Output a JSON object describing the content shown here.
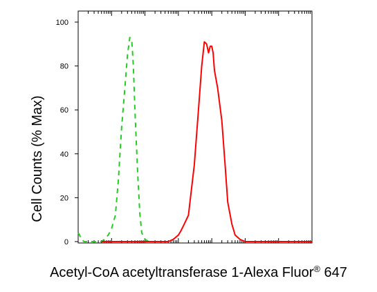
{
  "chart_data": {
    "type": "line",
    "title": "",
    "xlabel": "Acetyl-CoA acetyltransferase 1-Alexa Fluor",
    "xlabel_superscript": "®",
    "xlabel_suffix": " 647",
    "ylabel": "Cell Counts (% Max)",
    "x_scale": "log",
    "xlim": [
      1,
      10000000
    ],
    "ylim": [
      0,
      100
    ],
    "y_ticks": [
      0,
      20,
      40,
      60,
      80,
      100
    ],
    "y_tick_labels": [
      "0",
      "20",
      "40",
      "60",
      "80",
      "100"
    ],
    "x_tick_labels_shown": false,
    "grid": false,
    "legend": "none",
    "series": [
      {
        "color": "#22cc22",
        "line_style": "dashed",
        "x": [
          1,
          1.1,
          1.25,
          1.5,
          2,
          2.5,
          3,
          4,
          5,
          6,
          8,
          10,
          13,
          16,
          20,
          25,
          30,
          35,
          40,
          45,
          50,
          60,
          70,
          80,
          100,
          130,
          200,
          500
        ],
        "y": [
          4,
          3,
          1,
          0,
          0,
          0,
          0,
          0,
          0,
          1,
          3,
          6,
          12,
          28,
          52,
          70,
          85,
          93,
          92,
          80,
          60,
          32,
          13,
          4,
          1,
          0,
          0,
          0
        ]
      },
      {
        "color": "#ff0000",
        "line_style": "solid",
        "x": [
          5,
          200,
          500,
          700,
          1000,
          1200,
          1500,
          2000,
          3000,
          4000,
          5000,
          6000,
          7000,
          8000,
          9000,
          10000,
          11000,
          12000,
          15000,
          20000,
          25000,
          30000,
          40000,
          50000,
          70000,
          100000,
          200000,
          1000000,
          10000000
        ],
        "y": [
          0,
          0,
          0,
          1,
          3,
          5,
          8,
          12,
          35,
          60,
          80,
          91,
          90,
          86,
          89,
          89,
          86,
          78,
          70,
          55,
          35,
          18,
          8,
          3,
          1,
          0,
          0,
          0,
          0
        ]
      }
    ]
  }
}
